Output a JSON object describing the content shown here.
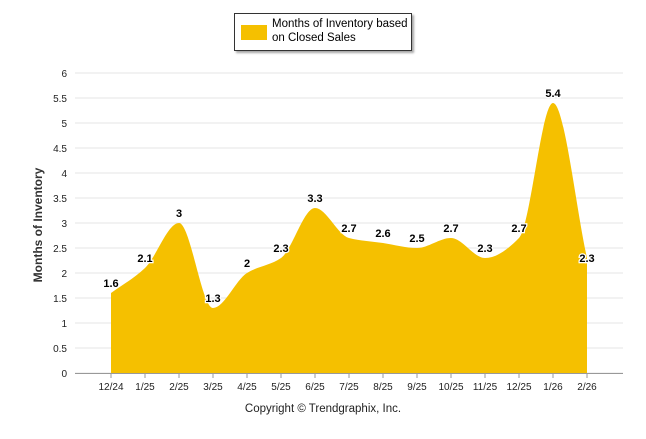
{
  "chart_data": {
    "type": "area",
    "title": "",
    "xlabel": "",
    "ylabel": "Months of Inventory",
    "ylim": [
      0,
      6
    ],
    "yticks": [
      "0",
      "0.5",
      "1",
      "1.5",
      "2",
      "2.5",
      "3",
      "3.5",
      "4",
      "4.5",
      "5",
      "5.5",
      "6"
    ],
    "categories": [
      "12/24",
      "1/25",
      "2/25",
      "3/25",
      "4/25",
      "5/25",
      "6/25",
      "7/25",
      "8/25",
      "9/25",
      "10/25",
      "11/25",
      "12/25",
      "1/26",
      "2/26"
    ],
    "series": [
      {
        "name": "Months of Inventory based on Closed Sales",
        "values": [
          1.6,
          2.1,
          3,
          1.3,
          2,
          2.3,
          3.3,
          2.7,
          2.6,
          2.5,
          2.7,
          2.3,
          2.7,
          5.4,
          2.3
        ],
        "labels": [
          "1.6",
          "2.1",
          "3",
          "1.3",
          "2",
          "2.3",
          "3.3",
          "2.7",
          "2.6",
          "2.5",
          "2.7",
          "2.3",
          "2.7",
          "5.4",
          "2.3"
        ]
      }
    ],
    "grid": true,
    "legend_position": "top-center"
  },
  "legend": {
    "label": "Months of Inventory based on Closed Sales"
  },
  "footer": {
    "copyright": "Copyright © Trendgraphix, Inc."
  },
  "colors": {
    "area_fill": "#F5C000",
    "grid": "#E4E4E4",
    "axis": "#999999",
    "text": "#000000"
  }
}
